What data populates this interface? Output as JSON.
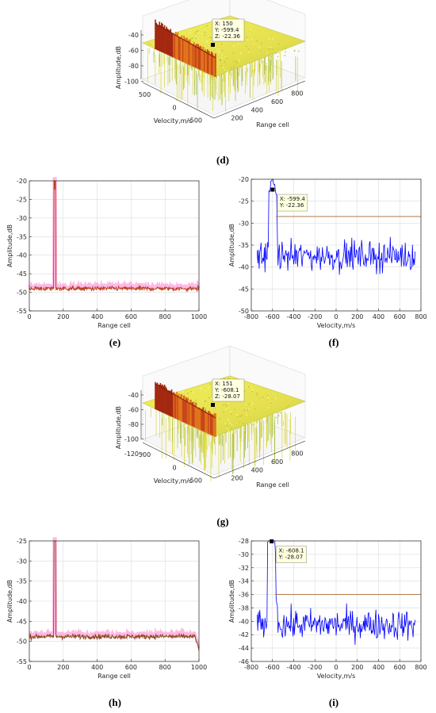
{
  "chart_data": [
    {
      "id": "d",
      "type": "surface",
      "panel_label": "(d)",
      "xlabel": "Range cell",
      "ylabel": "Velocity,m/s",
      "zlabel": "Amplitude,dB",
      "x_ticks": [
        200,
        400,
        600,
        800
      ],
      "y_ticks": [
        500,
        0,
        -500
      ],
      "z_ticks": [
        -40,
        -60,
        -80,
        -100
      ],
      "zlim": [
        -110,
        -35
      ],
      "datatip": {
        "x": 150,
        "y": -599.4,
        "z": -22.36,
        "lines": [
          "X: 150",
          "Y: -599.4",
          "Z: -22.36"
        ]
      }
    },
    {
      "id": "e",
      "type": "line",
      "panel_label": "(e)",
      "xlabel": "Range cell",
      "ylabel": "Amplitude,dB",
      "xlim": [
        0,
        1000
      ],
      "ylim": [
        -55,
        -20
      ],
      "x_ticks": [
        0,
        200,
        400,
        600,
        800,
        1000
      ],
      "y_ticks": [
        -20,
        -25,
        -30,
        -35,
        -40,
        -45,
        -50,
        -55
      ],
      "noise_floor": -49,
      "peak": {
        "x": 150,
        "y": -22.4
      },
      "series": [
        {
          "color": "#b5401d",
          "fill": "#ff7fd0"
        }
      ]
    },
    {
      "id": "f",
      "type": "line",
      "panel_label": "(f)",
      "xlabel": "Velocity,m/s",
      "ylabel": "Amplitude,dB",
      "xlim": [
        -800,
        800
      ],
      "ylim": [
        -50,
        -20
      ],
      "x_ticks": [
        -800,
        -600,
        -400,
        -200,
        0,
        200,
        400,
        600,
        800
      ],
      "y_ticks": [
        -20,
        -25,
        -30,
        -35,
        -40,
        -45,
        -50
      ],
      "noise_floor": -37.5,
      "threshold": -28.5,
      "peak": {
        "x": -599.4,
        "y": -22.36
      },
      "datatip": {
        "x": -599.4,
        "y": -22.36,
        "lines": [
          "X: -599.4",
          "Y: -22.36"
        ]
      },
      "series": [
        {
          "color": "#0000ff"
        }
      ]
    },
    {
      "id": "g",
      "type": "surface",
      "panel_label": "(g)",
      "xlabel": "Range cell",
      "ylabel": "Velocity,m/s",
      "zlabel": "Amplitude,dB",
      "x_ticks": [
        200,
        400,
        600,
        800
      ],
      "y_ticks": [
        500,
        0,
        -500
      ],
      "z_ticks": [
        -40,
        -60,
        -80,
        -100,
        -120
      ],
      "zlim": [
        -125,
        -35
      ],
      "datatip": {
        "x": 151,
        "y": -608.1,
        "z": -28.07,
        "lines": [
          "X: 151",
          "Y: -608.1",
          "Z: -28.07"
        ]
      }
    },
    {
      "id": "h",
      "type": "line",
      "panel_label": "(h)",
      "xlabel": "Range cell",
      "ylabel": "Amplitude,dB",
      "xlim": [
        0,
        1000
      ],
      "ylim": [
        -55,
        -25
      ],
      "x_ticks": [
        0,
        200,
        400,
        600,
        800,
        1000
      ],
      "y_ticks": [
        -25,
        -30,
        -35,
        -40,
        -45,
        -50,
        -55
      ],
      "noise_floor": -48.8,
      "peak": {
        "x": 151,
        "y": -28.6
      },
      "series": [
        {
          "color": "#8a4a1a",
          "fill": "#ff7fd0"
        }
      ]
    },
    {
      "id": "i",
      "type": "line",
      "panel_label": "(i)",
      "xlabel": "Velocity,m/s",
      "ylabel": "Amplitude,dB",
      "xlim": [
        -800,
        800
      ],
      "ylim": [
        -46,
        -28
      ],
      "x_ticks": [
        -800,
        -600,
        -400,
        -200,
        0,
        200,
        400,
        600,
        800
      ],
      "y_ticks": [
        -28,
        -30,
        -32,
        -34,
        -36,
        -38,
        -40,
        -42,
        -44,
        -46
      ],
      "noise_floor": -40.5,
      "threshold": -36,
      "peak": {
        "x": -608.1,
        "y": -28.07
      },
      "datatip": {
        "x": -608.1,
        "y": -28.07,
        "lines": [
          "X: -608.1",
          "Y: -28.07"
        ]
      },
      "series": [
        {
          "color": "#0000ff"
        }
      ]
    }
  ],
  "colors": {
    "axis": "#262626",
    "grid": "#dcdcdc",
    "blue_line": "#0000ff",
    "threshold": "#b07a4a",
    "surface_yellow": "#e8e84a",
    "surface_orange": "#e07a20",
    "surface_red": "#b02a10",
    "datatip_bg": "#ffffe1"
  }
}
